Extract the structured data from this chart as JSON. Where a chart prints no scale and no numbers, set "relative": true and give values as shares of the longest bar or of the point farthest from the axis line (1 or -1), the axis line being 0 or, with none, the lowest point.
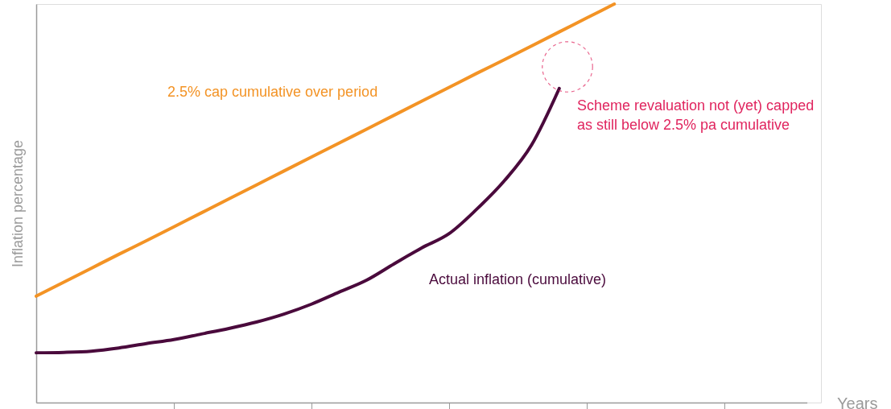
{
  "chart_data": {
    "type": "line",
    "relative": true,
    "xlabel": "Years",
    "ylabel": "Inflation percentage",
    "categories": [
      null,
      null,
      null,
      null,
      null,
      null,
      null,
      null,
      null,
      null,
      null,
      null,
      null,
      null,
      null,
      null,
      null,
      null,
      null,
      null,
      null,
      null,
      null,
      null,
      null,
      null,
      null,
      null,
      null
    ],
    "series": [
      {
        "name": "2.5% cap cumulative over period",
        "color": "#f39325",
        "values": [
          0.267,
          0.302,
          0.337,
          0.372,
          0.406,
          0.441,
          0.476,
          0.511,
          0.546,
          0.581,
          0.616,
          0.651,
          0.686,
          0.721,
          0.756,
          0.791,
          0.826,
          0.86,
          0.895,
          0.93,
          0.965,
          1.0,
          null,
          null,
          null,
          null,
          null,
          null,
          null
        ]
      },
      {
        "name": "Actual inflation (cumulative)",
        "color": "#4a0a3c",
        "values": [
          0.125,
          0.126,
          0.129,
          0.137,
          0.148,
          0.158,
          0.172,
          0.186,
          0.202,
          0.222,
          0.247,
          0.277,
          0.307,
          0.348,
          0.388,
          0.424,
          0.485,
          0.556,
          0.647,
          0.788,
          null,
          null,
          null,
          null,
          null,
          null,
          null,
          null,
          null
        ]
      }
    ],
    "annotations": [
      "Scheme revaluation not (yet) capped\nas still below 2.5% pa cumulative"
    ],
    "grid": false,
    "marker": "none",
    "line_style": "solid"
  }
}
